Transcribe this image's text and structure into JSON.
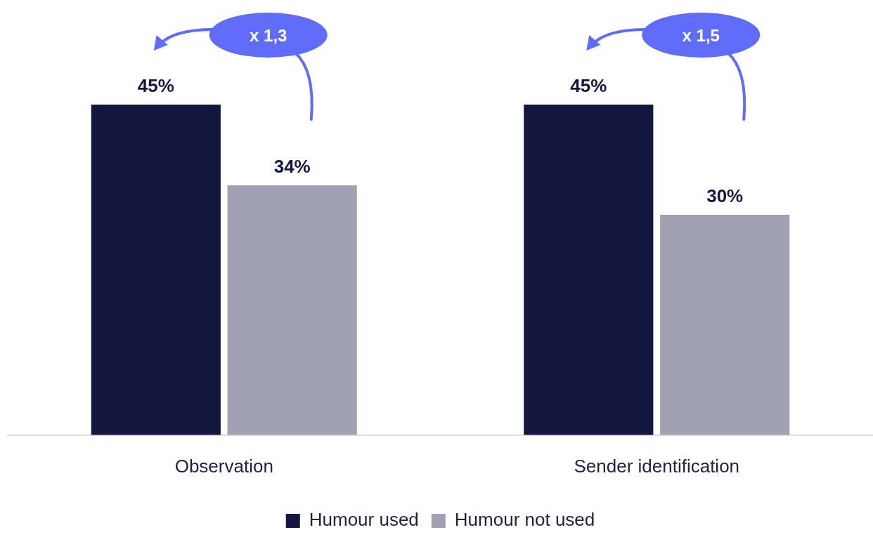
{
  "chart_data": {
    "type": "bar",
    "categories": [
      "Observation",
      "Sender identification"
    ],
    "series": [
      {
        "name": "Humour used",
        "color": "#131740",
        "values": [
          45,
          45
        ],
        "value_labels": [
          "45%",
          "45%"
        ]
      },
      {
        "name": "Humour not used",
        "color": "#a0a1b2",
        "values": [
          34,
          30
        ],
        "value_labels": [
          "34%",
          "30%"
        ]
      }
    ],
    "annotations": [
      "x 1,3",
      "x 1,5"
    ],
    "tick_labels": "x",
    "grid": false,
    "legend": "bottom"
  }
}
